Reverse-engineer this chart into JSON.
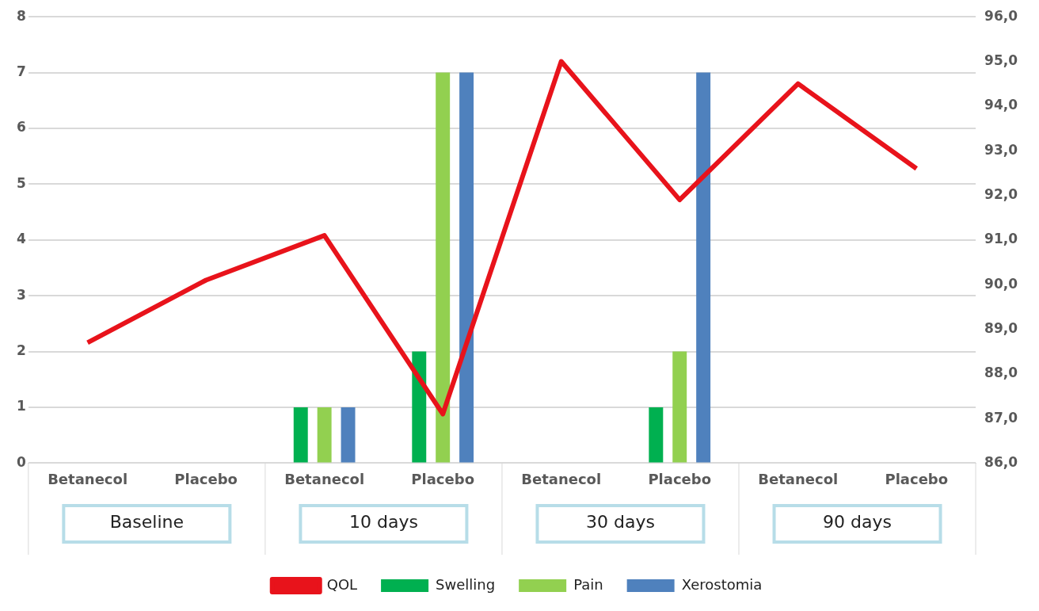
{
  "chart_data": {
    "type": "bar",
    "categories": [
      "Betanecol",
      "Placebo",
      "Betanecol",
      "Placebo",
      "Betanecol",
      "Placebo",
      "Betanecol",
      "Placebo"
    ],
    "series": [
      {
        "name": "Swelling",
        "color": "#00b050",
        "values": [
          0,
          0,
          1,
          2,
          0,
          1,
          0,
          0
        ]
      },
      {
        "name": "Pain",
        "color": "#92d050",
        "values": [
          0,
          0,
          1,
          7,
          0,
          2,
          0,
          0
        ]
      },
      {
        "name": "Xerostomia",
        "color": "#4f81bd",
        "values": [
          0,
          0,
          1,
          7,
          0,
          7,
          0,
          0
        ]
      },
      {
        "name": "QOL",
        "type": "line",
        "axis": "y2",
        "color": "#e8131b",
        "values": [
          88.7,
          90.1,
          91.1,
          87.1,
          95.0,
          91.9,
          94.5,
          92.6
        ]
      }
    ],
    "annotations": [
      "Baseline",
      "10 days",
      "30 days",
      "90 days"
    ],
    "ylim": [
      0,
      8
    ],
    "yticks": [
      0,
      1,
      2,
      3,
      4,
      5,
      6,
      7,
      8
    ],
    "y2lim": [
      86,
      96
    ],
    "y2ticks": [
      {
        "value": 86,
        "label": "86,0"
      },
      {
        "value": 87,
        "label": "87,0"
      },
      {
        "value": 88,
        "label": "88,0"
      },
      {
        "value": 89,
        "label": "89,0"
      },
      {
        "value": 90,
        "label": "90,0"
      },
      {
        "value": 91,
        "label": "91,0"
      },
      {
        "value": 92,
        "label": "92,0"
      },
      {
        "value": 93,
        "label": "93,0"
      },
      {
        "value": 94,
        "label": "94,0"
      },
      {
        "value": 95,
        "label": "95,0"
      },
      {
        "value": 96,
        "label": "96,0"
      }
    ],
    "grid": "y",
    "legend": "bottom",
    "marker": "none",
    "line_style": "solid"
  }
}
